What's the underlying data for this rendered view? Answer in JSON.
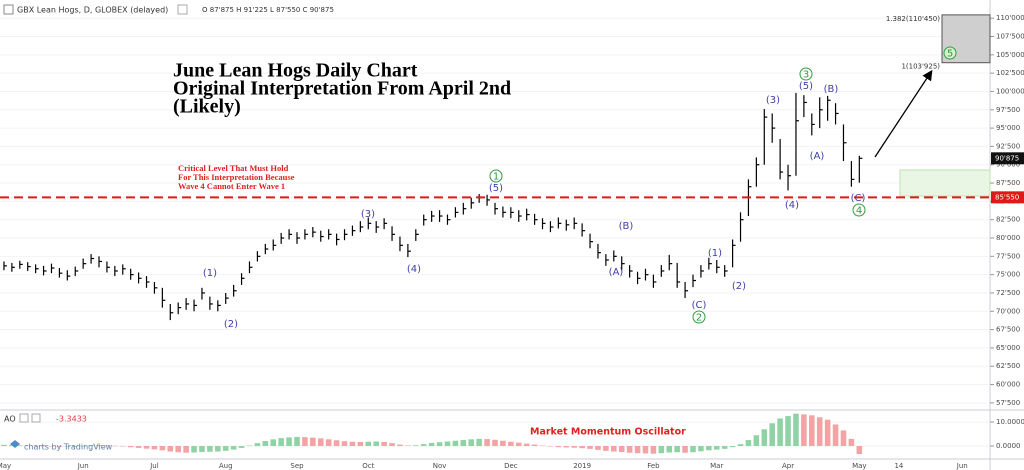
{
  "chart_data": [
    {
      "type": "ohlc",
      "title": "GBX Lean Hogs, D, GLOBEX (delayed)",
      "subtitle": "O 87'875 H 91'225 L 87'550 C 90'875",
      "annotations": {
        "headline": [
          "June Lean Hogs Daily Chart",
          "Original Interpretation From April 2nd",
          "(Likely)"
        ],
        "critical_note": [
          "Critical Level That Must Hold",
          "For This Interpretation Because",
          "Wave 4 Cannot Enter Wave 1"
        ],
        "watermark": "charts by TradingView"
      },
      "wave_labels": [
        "(1)",
        "(2)",
        "(3)",
        "(4)",
        "(5)",
        "(A)",
        "(B)",
        "(C)",
        "(1)",
        "(2)",
        "(3)",
        "(4)",
        "(5)",
        "(A)",
        "(B)",
        "(C)"
      ],
      "wave_circles": [
        "1",
        "2",
        "3",
        "4",
        "5"
      ],
      "color": "#000000",
      "categories": [
        "May",
        null,
        null,
        null,
        null,
        null,
        null,
        null,
        null,
        null,
        "Jun",
        null,
        null,
        null,
        null,
        null,
        null,
        null,
        null,
        "Jul",
        null,
        null,
        null,
        null,
        null,
        null,
        null,
        null,
        "Aug",
        null,
        null,
        null,
        null,
        null,
        null,
        null,
        null,
        "Sep",
        null,
        null,
        null,
        null,
        null,
        null,
        null,
        null,
        "Oct",
        null,
        null,
        null,
        null,
        null,
        null,
        null,
        null,
        "Nov",
        null,
        null,
        null,
        null,
        null,
        null,
        null,
        null,
        "Dec",
        null,
        null,
        null,
        null,
        null,
        null,
        null,
        null,
        "2019",
        null,
        null,
        null,
        null,
        null,
        null,
        null,
        null,
        "Feb",
        null,
        null,
        null,
        null,
        null,
        null,
        null,
        "Mar",
        null,
        null,
        null,
        null,
        null,
        null,
        null,
        null,
        "Apr",
        null,
        null,
        null,
        null,
        null,
        null,
        null,
        null,
        "May",
        null,
        null,
        null,
        null,
        "14",
        null,
        null,
        null,
        null,
        null,
        null,
        null,
        "Jun",
        null,
        null,
        null
      ],
      "high": [
        76.8,
        76.6,
        76.9,
        76.7,
        76.4,
        76.2,
        76.5,
        75.9,
        75.6,
        76.1,
        77.2,
        77.8,
        77.5,
        76.8,
        76.2,
        76.4,
        75.8,
        75.3,
        74.8,
        74.0,
        73.2,
        71.0,
        71.2,
        71.8,
        71.6,
        73.2,
        72.0,
        71.5,
        72.5,
        73.6,
        75.2,
        76.8,
        78.2,
        79.2,
        79.8,
        80.7,
        81.2,
        80.8,
        81.2,
        81.5,
        81.0,
        81.2,
        80.6,
        81.2,
        81.7,
        82.3,
        82.8,
        82.3,
        82.7,
        81.6,
        80.2,
        79.2,
        81.2,
        83.2,
        83.7,
        83.8,
        83.2,
        84.2,
        84.8,
        85.5,
        86.0,
        85.9,
        84.8,
        84.3,
        84.2,
        83.8,
        84.0,
        83.3,
        82.7,
        82.3,
        82.8,
        82.5,
        82.8,
        82.0,
        80.6,
        79.2,
        77.8,
        78.3,
        77.5,
        76.3,
        75.4,
        75.8,
        75.0,
        76.3,
        77.7,
        76.6,
        74.0,
        75.0,
        76.3,
        77.3,
        77.0,
        76.3,
        79.8,
        83.5,
        88.0,
        91.0,
        97.6,
        97.0,
        93.5,
        90.0,
        99.8,
        99.5,
        97.0,
        99.2,
        99.4,
        98.4,
        95.5,
        90.5,
        91.225,
        null,
        null,
        null,
        null,
        null,
        null,
        null,
        null,
        null,
        null,
        null,
        null,
        null,
        null,
        null,
        null
      ],
      "low": [
        75.6,
        75.4,
        75.8,
        75.5,
        75.2,
        74.9,
        75.2,
        74.6,
        74.2,
        74.8,
        75.8,
        76.5,
        76.0,
        75.3,
        74.8,
        75.0,
        74.3,
        73.8,
        73.2,
        72.4,
        70.5,
        68.8,
        69.6,
        70.2,
        70.0,
        71.6,
        70.2,
        70.0,
        71.0,
        72.0,
        73.6,
        75.2,
        76.8,
        77.8,
        78.3,
        79.2,
        79.8,
        79.2,
        79.8,
        80.1,
        79.5,
        79.8,
        79.0,
        79.7,
        80.3,
        80.8,
        81.2,
        80.7,
        81.2,
        79.6,
        78.2,
        77.4,
        79.6,
        81.7,
        82.2,
        82.2,
        81.8,
        82.8,
        83.2,
        84.0,
        84.8,
        84.4,
        83.2,
        82.8,
        82.7,
        82.2,
        82.4,
        81.8,
        81.2,
        80.8,
        81.3,
        81.0,
        81.2,
        80.2,
        78.6,
        77.2,
        76.2,
        76.8,
        75.6,
        74.6,
        73.7,
        74.2,
        73.2,
        74.7,
        75.6,
        73.2,
        71.8,
        73.3,
        74.6,
        75.7,
        75.2,
        74.7,
        76.0,
        79.5,
        83.0,
        87.0,
        90.0,
        93.0,
        88.0,
        86.5,
        88.5,
        96.5,
        94.0,
        95.0,
        96.0,
        95.5,
        90.5,
        87.0,
        87.55,
        null,
        null,
        null,
        null,
        null,
        null,
        null,
        null,
        null,
        null,
        null,
        null,
        null,
        null,
        null,
        null
      ],
      "close": [
        76.2,
        76.0,
        76.4,
        76.1,
        75.8,
        75.5,
        75.9,
        75.2,
        74.8,
        75.5,
        76.5,
        77.2,
        76.8,
        76.0,
        75.5,
        75.8,
        75.0,
        74.5,
        74.0,
        73.2,
        71.5,
        69.8,
        70.5,
        71.0,
        70.8,
        72.5,
        71.0,
        70.8,
        71.8,
        72.8,
        74.5,
        76.0,
        77.5,
        78.5,
        79.0,
        80.0,
        80.5,
        80.0,
        80.5,
        80.8,
        80.2,
        80.5,
        79.8,
        80.5,
        81.0,
        81.5,
        82.0,
        81.5,
        82.0,
        80.5,
        79.0,
        78.2,
        80.5,
        82.5,
        83.0,
        83.0,
        82.5,
        83.5,
        84.0,
        84.8,
        85.5,
        85.2,
        84.0,
        83.5,
        83.5,
        83.0,
        83.2,
        82.5,
        82.0,
        81.5,
        82.0,
        81.8,
        82.0,
        81.0,
        79.5,
        78.0,
        77.0,
        77.5,
        76.5,
        75.5,
        74.5,
        75.0,
        74.0,
        75.5,
        76.5,
        74.0,
        72.8,
        74.2,
        75.5,
        76.5,
        76.0,
        75.5,
        79.0,
        82.5,
        87.0,
        90.0,
        96.5,
        95.0,
        89.0,
        88.5,
        96.0,
        98.5,
        95.5,
        97.5,
        98.8,
        97.0,
        93.0,
        88.0,
        90.875,
        null,
        null,
        null,
        null,
        null,
        null,
        null,
        null,
        null,
        null,
        null,
        null,
        null,
        null,
        null,
        null
      ],
      "ylim": [
        56.8,
        111.8
      ],
      "yticks": [
        {
          "value": 57.5,
          "label": "57'500"
        },
        {
          "value": 60,
          "label": "60'000"
        },
        {
          "value": 62.5,
          "label": "62'500"
        },
        {
          "value": 65,
          "label": "65'000"
        },
        {
          "value": 67.5,
          "label": "67'500"
        },
        {
          "value": 70,
          "label": "70'000"
        },
        {
          "value": 72.5,
          "label": "72'500"
        },
        {
          "value": 75,
          "label": "75'000"
        },
        {
          "value": 77.5,
          "label": "77'500"
        },
        {
          "value": 80,
          "label": "80'000"
        },
        {
          "value": 82.5,
          "label": "82'500"
        },
        {
          "value": 85,
          "label": "85'000"
        },
        {
          "value": 87.5,
          "label": "87'500"
        },
        {
          "value": 90,
          "label": "90'000"
        },
        {
          "value": 92.5,
          "label": "92'500"
        },
        {
          "value": 95,
          "label": "95'000"
        },
        {
          "value": 97.5,
          "label": "97'500"
        },
        {
          "value": 100,
          "label": "100'000"
        },
        {
          "value": 102.5,
          "label": "102'500"
        },
        {
          "value": 105,
          "label": "105'000"
        },
        {
          "value": 107.5,
          "label": "107'500"
        },
        {
          "value": 110,
          "label": "110'000"
        }
      ],
      "grid": true,
      "critical_level": {
        "value": 85.55,
        "label": "85'550"
      },
      "last_price": {
        "value": 90.875,
        "label": "90'875"
      },
      "fib_levels": [
        {
          "value": 110.45,
          "label": "1.382(110'450)"
        },
        {
          "value": 103.925,
          "label": "1(103'925)"
        }
      ]
    },
    {
      "type": "bar",
      "title": "AO",
      "annotation": "Market Momentum Oscillator",
      "up_color": "#8fd3a5",
      "down_color": "#f2a3a3",
      "values": [
        0.5,
        0.4,
        0.3,
        0.2,
        0.1,
        -0.1,
        -0.2,
        -0.3,
        -0.2,
        -0.1,
        0.1,
        0.3,
        0.4,
        0.3,
        0.1,
        -0.2,
        -0.5,
        -0.8,
        -1.1,
        -1.4,
        -1.8,
        -2.3,
        -2.6,
        -2.8,
        -2.7,
        -2.5,
        -2.4,
        -2.3,
        -2.0,
        -1.5,
        -0.8,
        0.2,
        1.2,
        2.1,
        2.8,
        3.3,
        3.6,
        3.8,
        3.7,
        3.5,
        3.2,
        2.8,
        2.4,
        2.0,
        1.8,
        1.7,
        1.8,
        1.9,
        1.7,
        1.2,
        0.6,
        0.2,
        0.3,
        0.8,
        1.3,
        1.6,
        1.9,
        2.2,
        2.5,
        2.8,
        3.0,
        2.9,
        2.6,
        2.2,
        1.8,
        1.4,
        1.0,
        0.6,
        0.2,
        -0.2,
        -0.5,
        -0.6,
        -0.7,
        -0.9,
        -1.2,
        -1.6,
        -2.0,
        -2.3,
        -2.5,
        -2.8,
        -3.0,
        -3.1,
        -3.2,
        -3.0,
        -2.7,
        -2.6,
        -2.8,
        -2.6,
        -2.2,
        -1.8,
        -1.5,
        -1.2,
        -0.5,
        0.8,
        2.5,
        4.5,
        7.0,
        9.5,
        11.5,
        12.5,
        13.5,
        13.2,
        12.8,
        12.0,
        11.0,
        9.0,
        6.5,
        3.0,
        -3.3433,
        null,
        null,
        null,
        null,
        null,
        null,
        null,
        null,
        null,
        null,
        null,
        null,
        null,
        null,
        null,
        null
      ],
      "ylim": [
        -5,
        14.2
      ],
      "yticks": [
        {
          "value": 0,
          "label": "0.0000"
        },
        {
          "value": 10,
          "label": "10.0000"
        }
      ]
    }
  ]
}
